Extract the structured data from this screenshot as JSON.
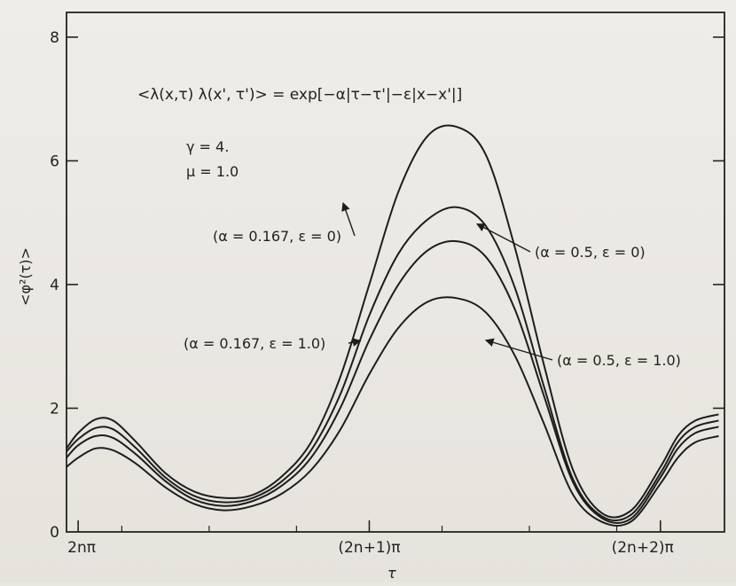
{
  "chart_data": {
    "type": "line",
    "formula": "<λ(x,τ) λ(x', τ')> = exp[−α|τ−τ'|−ε|x−x'|]",
    "params": [
      "γ = 4.",
      "μ = 1.0"
    ],
    "xlabel": "τ",
    "ylabel": "<φ²(τ)>",
    "x_tick_labels": [
      "2nπ",
      "(2n+1)π",
      "(2n+2)π"
    ],
    "x_ticks": [
      0,
      1,
      2
    ],
    "y_ticks": [
      0,
      2,
      4,
      6,
      8
    ],
    "xlim": [
      -0.04,
      2.22
    ],
    "ylim": [
      0,
      8.4
    ],
    "grid": false,
    "x": [
      -0.04,
      0.0,
      0.06,
      0.12,
      0.2,
      0.3,
      0.4,
      0.5,
      0.6,
      0.7,
      0.8,
      0.9,
      1.0,
      1.1,
      1.2,
      1.3,
      1.4,
      1.5,
      1.6,
      1.7,
      1.8,
      1.9,
      2.0,
      2.06,
      2.12,
      2.2
    ],
    "series": [
      {
        "label": "(α = 0.167, ε = 0)",
        "values": [
          1.35,
          1.6,
          1.82,
          1.8,
          1.45,
          0.95,
          0.65,
          0.55,
          0.6,
          0.9,
          1.45,
          2.5,
          4.0,
          5.5,
          6.4,
          6.55,
          6.1,
          4.6,
          2.7,
          1.0,
          0.3,
          0.35,
          1.05,
          1.55,
          1.8,
          1.9
        ]
      },
      {
        "label": "(α = 0.5, ε = 0)",
        "values": [
          1.3,
          1.5,
          1.68,
          1.66,
          1.35,
          0.88,
          0.58,
          0.48,
          0.55,
          0.82,
          1.32,
          2.22,
          3.5,
          4.5,
          5.05,
          5.25,
          4.95,
          3.95,
          2.35,
          0.85,
          0.25,
          0.28,
          0.95,
          1.45,
          1.7,
          1.8
        ]
      },
      {
        "label": "(α = 0.167, ε = 1.0)",
        "values": [
          1.2,
          1.4,
          1.55,
          1.52,
          1.25,
          0.82,
          0.52,
          0.42,
          0.5,
          0.75,
          1.2,
          2.0,
          3.1,
          4.0,
          4.55,
          4.7,
          4.45,
          3.6,
          2.2,
          0.8,
          0.22,
          0.22,
          0.88,
          1.35,
          1.6,
          1.7
        ]
      },
      {
        "label": "(α = 0.5, ε = 1.0)",
        "values": [
          1.05,
          1.2,
          1.35,
          1.32,
          1.1,
          0.72,
          0.45,
          0.35,
          0.42,
          0.62,
          1.0,
          1.65,
          2.55,
          3.3,
          3.72,
          3.78,
          3.55,
          2.85,
          1.75,
          0.6,
          0.16,
          0.17,
          0.78,
          1.2,
          1.45,
          1.55
        ]
      }
    ]
  }
}
